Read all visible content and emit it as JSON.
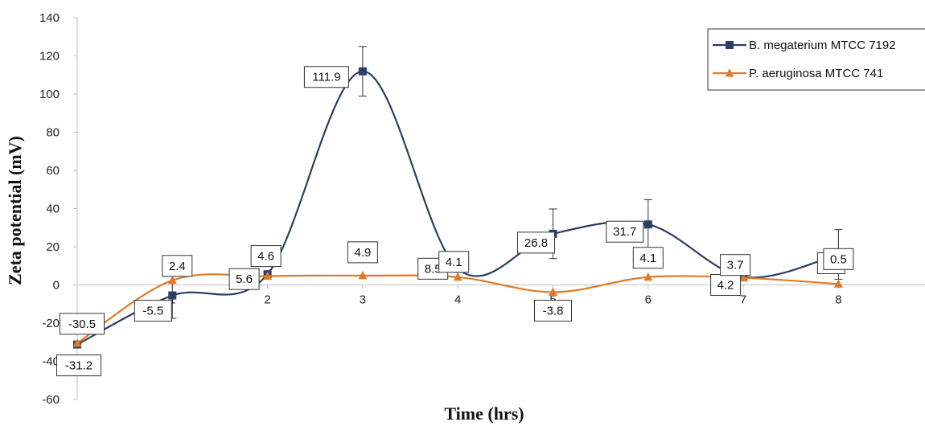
{
  "chart_data": {
    "type": "line",
    "title": "",
    "xlabel": "Time (hrs)",
    "ylabel": "Zeta potential (mV)",
    "x": [
      0,
      1,
      2,
      3,
      4,
      5,
      6,
      7,
      8
    ],
    "x_tick_labels": [
      "1",
      "2",
      "3",
      "4",
      "5",
      "6",
      "7",
      "8"
    ],
    "x_tick_values": [
      1,
      2,
      3,
      4,
      5,
      6,
      7,
      8
    ],
    "ylim": [
      -60,
      140
    ],
    "y_ticks": [
      -60,
      -40,
      -20,
      0,
      20,
      40,
      60,
      80,
      100,
      120,
      140
    ],
    "grid": false,
    "smooth": true,
    "legend_position": "top-right",
    "series": [
      {
        "name": "B. megaterium MTCC 7192",
        "color": "#2c3e63",
        "marker": "square",
        "values": [
          -31.2,
          -5.5,
          5.6,
          111.9,
          8.5,
          26.8,
          31.7,
          4.2,
          16
        ],
        "labels": [
          "-31.2",
          "-5.5",
          "5.6",
          "111.9",
          "8.5",
          "26.8",
          "31.7",
          "4.2",
          "16"
        ],
        "error": [
          null,
          12,
          null,
          13,
          null,
          13,
          13,
          null,
          13
        ]
      },
      {
        "name": "P. aeruginosa MTCC 741",
        "color": "#e07b2a",
        "marker": "triangle",
        "values": [
          -30.5,
          2.4,
          4.6,
          4.9,
          4.1,
          -3.8,
          4.1,
          3.7,
          0.5
        ],
        "labels": [
          "-30.5",
          "2.4",
          "4.6",
          "4.9",
          "4.1",
          "-3.8",
          "4.1",
          "3.7",
          "0.5"
        ],
        "error": [
          null,
          null,
          null,
          null,
          null,
          null,
          null,
          null,
          null
        ]
      }
    ]
  }
}
